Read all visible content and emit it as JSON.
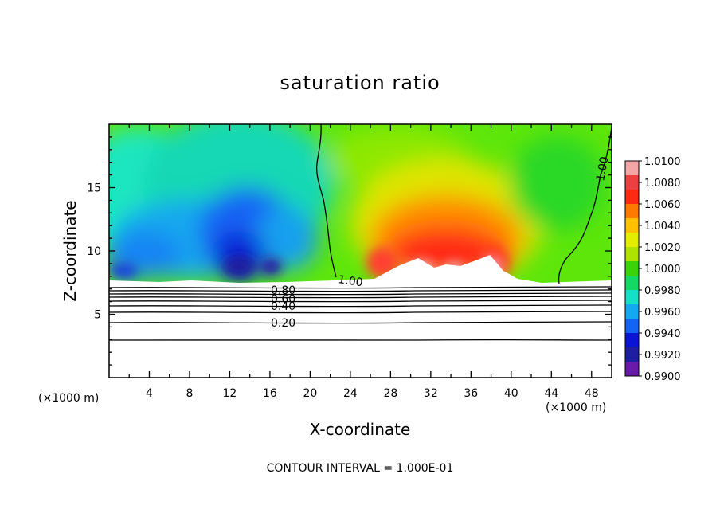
{
  "chart_data": {
    "type": "heatmap",
    "title": "saturation ratio",
    "xlabel": "X-coordinate",
    "ylabel": "Z-coordinate",
    "x_unit_left": "(×1000 m)",
    "x_unit_right": "(×1000 m)",
    "xlim": [
      0,
      50
    ],
    "ylim": [
      0,
      20
    ],
    "x_ticks": [
      4,
      8,
      12,
      16,
      20,
      24,
      28,
      32,
      36,
      40,
      44,
      48
    ],
    "y_ticks": [
      5,
      10,
      15
    ],
    "contour_labels": [
      "0.80",
      "0.60",
      "0.40",
      "0.20",
      "1.00",
      "1.00"
    ],
    "colorbar": {
      "ticks": [
        "1.0100",
        "1.0080",
        "1.0060",
        "1.0040",
        "1.0020",
        "1.0000",
        "0.9980",
        "0.9960",
        "0.9940",
        "0.9920",
        "0.9900"
      ],
      "colors": [
        "#f4a6a6",
        "#ec4040",
        "#ff2a14",
        "#ff7a00",
        "#ffc000",
        "#e4ec00",
        "#aee200",
        "#3cd20a",
        "#14d864",
        "#14e0c8",
        "#14a8ee",
        "#1464f4",
        "#0a14d4",
        "#1e1ea0",
        "#6a1aa8"
      ]
    },
    "footer": "CONTOUR INTERVAL = 1.000E-01"
  }
}
